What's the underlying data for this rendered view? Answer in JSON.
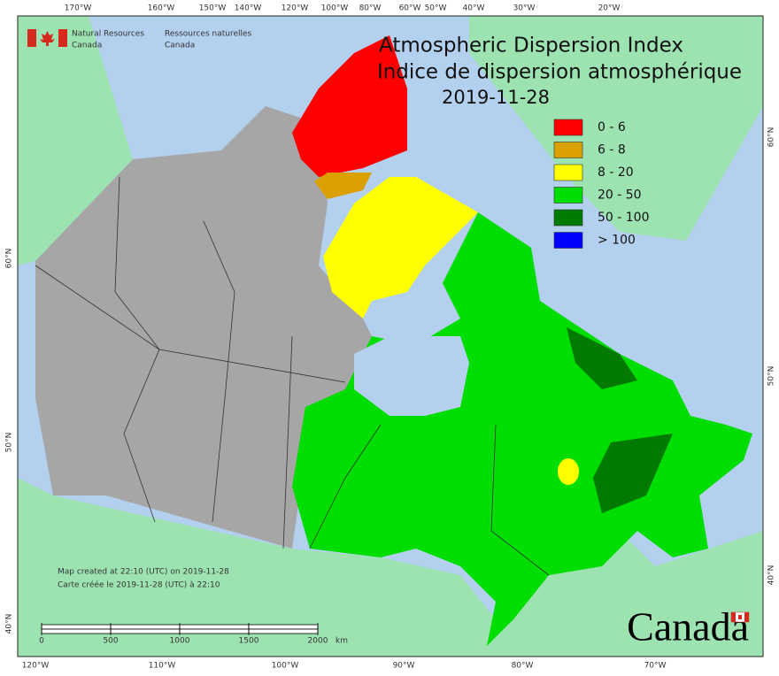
{
  "agency": {
    "en_line1": "Natural Resources",
    "en_line2": "Canada",
    "fr_line1": "Ressources naturelles",
    "fr_line2": "Canada"
  },
  "title": {
    "en": "Atmospheric Dispersion Index",
    "fr": "Indice de dispersion atmosphérique",
    "date": "2019-11-28"
  },
  "legend": [
    {
      "label": "0 - 6",
      "color": "#ff0000"
    },
    {
      "label": "6 - 8",
      "color": "#daa000"
    },
    {
      "label": "8 - 20",
      "color": "#ffff00"
    },
    {
      "label": "20 - 50",
      "color": "#00dd00"
    },
    {
      "label": "50 - 100",
      "color": "#007a00"
    },
    {
      "label": "> 100",
      "color": "#0000ff"
    }
  ],
  "graticule": {
    "top": [
      "170°W",
      "160°W",
      "150°W",
      "140°W",
      "120°W",
      "100°W",
      "80°W",
      "60°W",
      "50°W",
      "40°W",
      "30°W",
      "20°W"
    ],
    "bottom": [
      "120°W",
      "110°W",
      "100°W",
      "90°W",
      "80°W",
      "70°W"
    ],
    "left": [
      "60°N",
      "50°N",
      "40°N"
    ],
    "right": [
      "60°N",
      "50°N",
      "40°N"
    ]
  },
  "scale_bar": {
    "ticks": [
      0,
      500,
      1000,
      1500,
      2000
    ],
    "unit": "km"
  },
  "footer": {
    "created_en": "Map created at 22:10 (UTC) on 2019-11-28",
    "created_fr": "Carte créée le 2019-11-28 (UTC) à 22:10"
  },
  "wordmark": "Canada"
}
